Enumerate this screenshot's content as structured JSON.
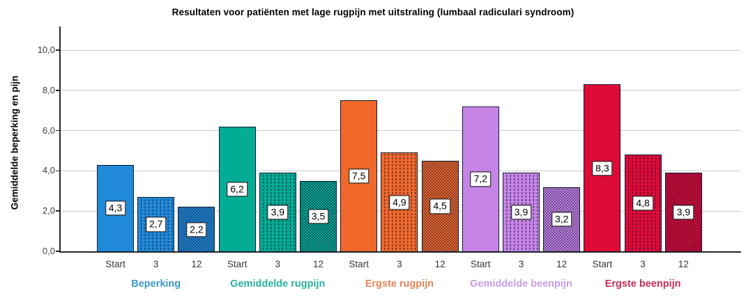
{
  "chart_data": {
    "type": "bar",
    "title": "Resultaten voor patiënten met lage rugpijn met uitstraling (lumbaal radiculari syndroom)",
    "ylabel": "Gemiddelde beperking en pijn",
    "xlabel": "",
    "ylim": [
      0,
      10.8
    ],
    "yticks": [
      0,
      2,
      4,
      6,
      8,
      10
    ],
    "ytick_labels": [
      "0,0",
      "2,0",
      "4,0",
      "6,0",
      "8,0",
      "10,0"
    ],
    "grid": true,
    "legend_position": "none",
    "categories": [
      "Start",
      "3",
      "12"
    ],
    "series": [
      {
        "name": "Beperking",
        "values": [
          4.3,
          2.7,
          2.2
        ],
        "value_labels": [
          "4,3",
          "2,7",
          "2,2"
        ],
        "color": "#218AD8",
        "label_color": "#3D9AC6"
      },
      {
        "name": "Gemiddelde rugpijn",
        "values": [
          6.2,
          3.9,
          3.5
        ],
        "value_labels": [
          "6,2",
          "3,9",
          "3,5"
        ],
        "color": "#03AC94",
        "label_color": "#29B0A0"
      },
      {
        "name": "Ergste rugpijn",
        "values": [
          7.5,
          4.9,
          4.5
        ],
        "value_labels": [
          "7,5",
          "4,9",
          "4,5"
        ],
        "color": "#F0682A",
        "label_color": "#E28559"
      },
      {
        "name": "Gemiddelde beenpijn",
        "values": [
          7.2,
          3.9,
          3.2
        ],
        "value_labels": [
          "7,2",
          "3,9",
          "3,2"
        ],
        "color": "#C684E6",
        "label_color": "#CA9DE6"
      },
      {
        "name": "Ergste beenpijn",
        "values": [
          8.3,
          4.8,
          3.9
        ],
        "value_labels": [
          "8,3",
          "4,8",
          "3,9"
        ],
        "color": "#DE0A38",
        "label_color": "#C62D56"
      }
    ],
    "bar_fill_patterns_by_category": [
      "solid",
      "vertical-dashed",
      "dotted-grid"
    ]
  }
}
